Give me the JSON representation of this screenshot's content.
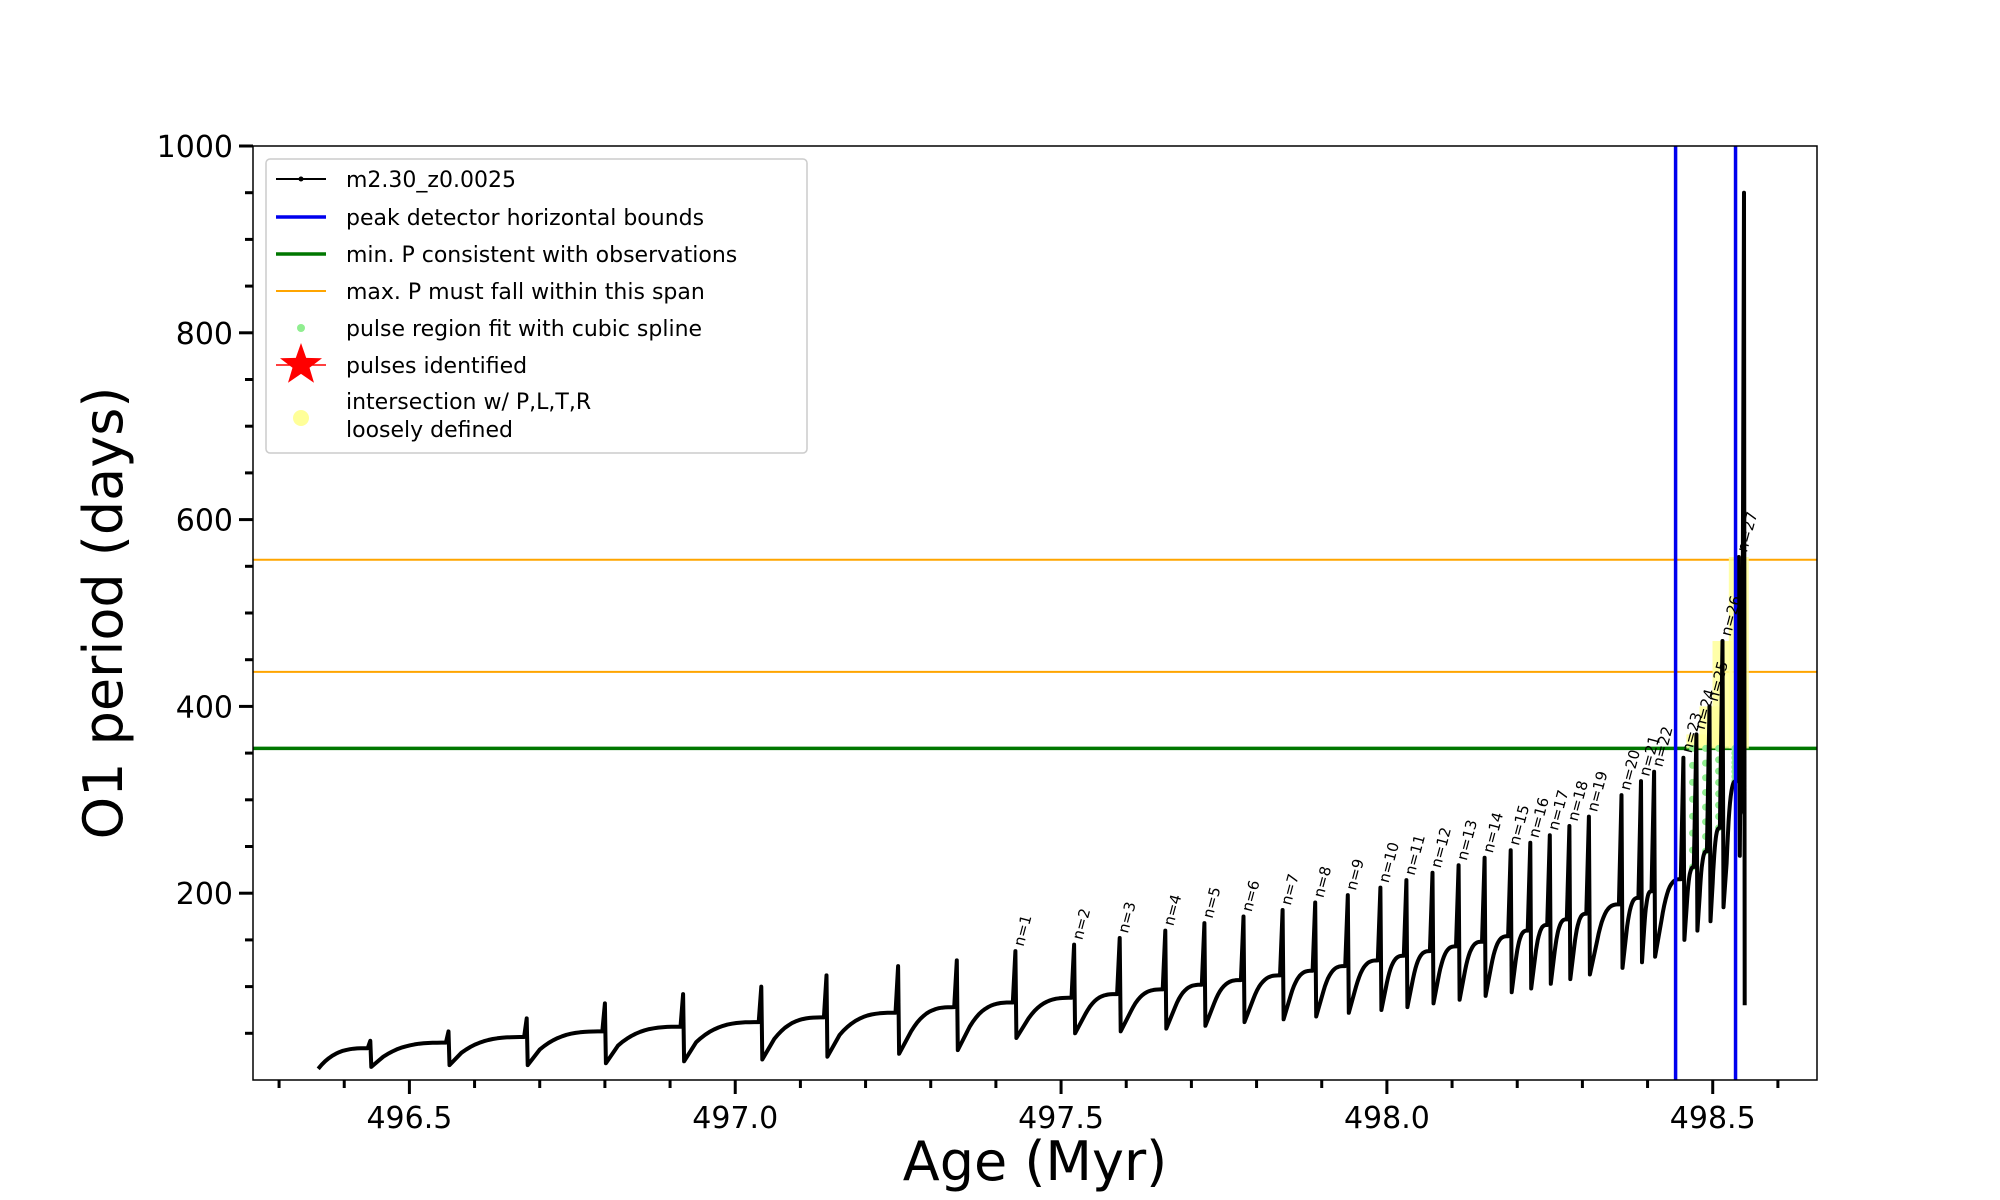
{
  "chart_data": {
    "type": "line",
    "title": "",
    "xlabel": "Age (Myr)",
    "ylabel": "O1 period (days)",
    "xlim": [
      496.26,
      498.66
    ],
    "ylim": [
      0,
      1000
    ],
    "xticks_major": [
      496.5,
      497.0,
      497.5,
      498.0,
      498.5
    ],
    "xtick_labels": [
      "496.5",
      "497.0",
      "497.5",
      "498.0",
      "498.5"
    ],
    "yticks_major": [
      200,
      400,
      600,
      800,
      1000
    ],
    "ytick_labels": [
      "200",
      "400",
      "600",
      "800",
      "1000"
    ],
    "grid": false,
    "legend_placement": "upper-left",
    "colors": {
      "track": "#000000",
      "peak_bounds": "#0000ee",
      "min_period": "#007700",
      "max_period_span": "#ffa500",
      "spline_fit": "#90ee90",
      "pulses": "#ff0000",
      "loosely_defined": "#ffff99"
    },
    "legend": [
      {
        "label": "m2.30_z0.0025",
        "marker": "line-dot",
        "color": "#000000"
      },
      {
        "label": "peak detector horizontal bounds",
        "marker": "line-thick",
        "color": "#0000ee"
      },
      {
        "label": "min. P consistent with observations",
        "marker": "line-thick",
        "color": "#007700"
      },
      {
        "label": "max. P must fall within this span",
        "marker": "line-thin",
        "color": "#ffa500"
      },
      {
        "label": "pulse region fit with cubic spline",
        "marker": "dot",
        "color": "#90ee90"
      },
      {
        "label": "pulses identified",
        "marker": "star",
        "color": "#ff0000"
      },
      {
        "label_lines": [
          "intersection w/ P,L,T,R",
          "loosely defined"
        ],
        "marker": "dot-big",
        "color": "#ffff99"
      }
    ],
    "series": [
      {
        "name": "m2.30_z0.0025",
        "kind": "pulse-track",
        "start_age": 496.36,
        "start_period": 12,
        "pulses": [
          {
            "age": 496.44,
            "peak": 42,
            "min": 14,
            "base": 34,
            "label": ""
          },
          {
            "age": 496.56,
            "peak": 52,
            "min": 16,
            "base": 40,
            "label": ""
          },
          {
            "age": 496.68,
            "peak": 66,
            "min": 16,
            "base": 46,
            "label": ""
          },
          {
            "age": 496.8,
            "peak": 82,
            "min": 18,
            "base": 52,
            "label": ""
          },
          {
            "age": 496.92,
            "peak": 92,
            "min": 20,
            "base": 57,
            "label": ""
          },
          {
            "age": 497.04,
            "peak": 100,
            "min": 22,
            "base": 62,
            "label": ""
          },
          {
            "age": 497.14,
            "peak": 112,
            "min": 25,
            "base": 67,
            "label": ""
          },
          {
            "age": 497.25,
            "peak": 122,
            "min": 28,
            "base": 72,
            "label": ""
          },
          {
            "age": 497.34,
            "peak": 128,
            "min": 32,
            "base": 78,
            "label": ""
          },
          {
            "age": 497.43,
            "peak": 138,
            "min": 45,
            "base": 83,
            "label": "n=1"
          },
          {
            "age": 497.52,
            "peak": 145,
            "min": 50,
            "base": 88,
            "label": "n=2"
          },
          {
            "age": 497.59,
            "peak": 152,
            "min": 52,
            "base": 92,
            "label": "n=3"
          },
          {
            "age": 497.66,
            "peak": 160,
            "min": 55,
            "base": 97,
            "label": "n=4"
          },
          {
            "age": 497.72,
            "peak": 168,
            "min": 58,
            "base": 102,
            "label": "n=5"
          },
          {
            "age": 497.78,
            "peak": 175,
            "min": 62,
            "base": 107,
            "label": "n=6"
          },
          {
            "age": 497.84,
            "peak": 182,
            "min": 65,
            "base": 112,
            "label": "n=7"
          },
          {
            "age": 497.89,
            "peak": 190,
            "min": 68,
            "base": 117,
            "label": "n=8"
          },
          {
            "age": 497.94,
            "peak": 198,
            "min": 72,
            "base": 122,
            "label": "n=9"
          },
          {
            "age": 497.99,
            "peak": 206,
            "min": 75,
            "base": 128,
            "label": "n=10"
          },
          {
            "age": 498.03,
            "peak": 214,
            "min": 78,
            "base": 133,
            "label": "n=11"
          },
          {
            "age": 498.07,
            "peak": 222,
            "min": 82,
            "base": 138,
            "label": "n=12"
          },
          {
            "age": 498.11,
            "peak": 230,
            "min": 86,
            "base": 143,
            "label": "n=13"
          },
          {
            "age": 498.15,
            "peak": 238,
            "min": 90,
            "base": 148,
            "label": "n=14"
          },
          {
            "age": 498.19,
            "peak": 246,
            "min": 94,
            "base": 154,
            "label": "n=15"
          },
          {
            "age": 498.22,
            "peak": 254,
            "min": 98,
            "base": 160,
            "label": "n=16"
          },
          {
            "age": 498.25,
            "peak": 262,
            "min": 103,
            "base": 166,
            "label": "n=17"
          },
          {
            "age": 498.28,
            "peak": 272,
            "min": 108,
            "base": 172,
            "label": "n=18"
          },
          {
            "age": 498.31,
            "peak": 282,
            "min": 113,
            "base": 178,
            "label": "n=19"
          },
          {
            "age": 498.36,
            "peak": 305,
            "min": 120,
            "base": 188,
            "label": "n=20"
          },
          {
            "age": 498.39,
            "peak": 320,
            "min": 126,
            "base": 195,
            "label": "n=21"
          },
          {
            "age": 498.41,
            "peak": 330,
            "min": 132,
            "base": 202,
            "label": "n=22"
          },
          {
            "age": 498.455,
            "peak": 345,
            "min": 150,
            "base": 215,
            "label": "n=23"
          },
          {
            "age": 498.475,
            "peak": 370,
            "min": 160,
            "base": 228,
            "label": "n=24"
          },
          {
            "age": 498.495,
            "peak": 400,
            "min": 170,
            "base": 245,
            "label": "n=25"
          },
          {
            "age": 498.515,
            "peak": 470,
            "min": 185,
            "base": 270,
            "label": "n=26"
          },
          {
            "age": 498.54,
            "peak": 560,
            "min": 240,
            "base": 320,
            "label": "n=27"
          }
        ],
        "end_spike": {
          "age": 498.548,
          "peak": 950,
          "min": 80
        }
      }
    ],
    "vertical_lines": [
      {
        "name": "peak detector horizontal bounds",
        "x": 498.443,
        "color": "#0000ee"
      },
      {
        "name": "peak detector horizontal bounds",
        "x": 498.535,
        "color": "#0000ee"
      }
    ],
    "horizontal_lines": [
      {
        "name": "min. P consistent with observations",
        "y": 355,
        "color": "#007700"
      },
      {
        "name": "max. P must fall within this span",
        "y": 437,
        "color": "#ffa500"
      },
      {
        "name": "max. P must fall within this span",
        "y": 557,
        "color": "#ffa500"
      }
    ]
  }
}
